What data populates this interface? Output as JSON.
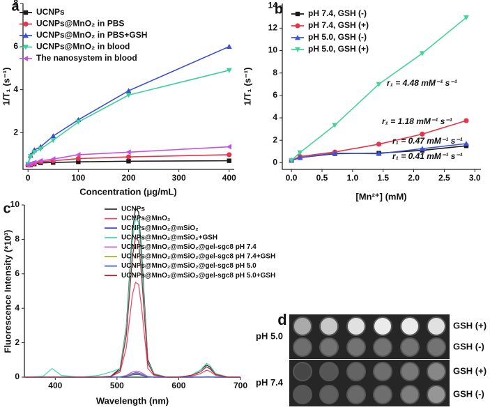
{
  "chart_data": [
    {
      "type": "line",
      "panel_label": "a",
      "x_label": "Concentration (μg/mL)",
      "y_label": "1/T₁ (s⁻¹)",
      "x": [
        0,
        5,
        12.5,
        25,
        50,
        100,
        200,
        400
      ],
      "xlim": [
        -10,
        410
      ],
      "xticks": [
        0,
        100,
        200,
        300,
        400
      ],
      "ylim": [
        0.3,
        8
      ],
      "yticks": [
        2,
        4,
        6,
        8
      ],
      "series": [
        {
          "name": "UCNPs",
          "color": "#1a1a1a",
          "marker": "square",
          "values": [
            0.5,
            0.5,
            0.55,
            0.6,
            0.62,
            0.65,
            0.68,
            0.7
          ]
        },
        {
          "name": "UCNPs@MnO₂ in PBS",
          "color": "#e8344a",
          "marker": "circle",
          "values": [
            0.5,
            0.52,
            0.58,
            0.65,
            0.7,
            0.8,
            0.88,
            0.98
          ]
        },
        {
          "name": "UCNPs@MnO₂ in PBS+GSH",
          "color": "#3a4fd8",
          "marker": "triangle-up",
          "values": [
            0.55,
            0.95,
            1.2,
            1.35,
            1.85,
            2.6,
            3.95,
            6.0
          ]
        },
        {
          "name": "UCNPs@MnO₂ in blood",
          "color": "#3fcf9e",
          "marker": "triangle-down",
          "values": [
            0.55,
            0.9,
            1.1,
            1.25,
            1.65,
            2.5,
            3.75,
            4.9
          ]
        },
        {
          "name": "The nanosystem in blood",
          "color": "#c454e0",
          "marker": "triangle-left",
          "values": [
            0.5,
            0.55,
            0.62,
            0.7,
            0.78,
            0.98,
            1.1,
            1.35
          ]
        }
      ]
    },
    {
      "type": "line",
      "panel_label": "b",
      "x_label": "[Mn²⁺] (mM)",
      "y_label": "1/T₁ (s⁻¹)",
      "x": [
        0,
        0.14,
        0.71,
        1.43,
        2.14,
        2.86
      ],
      "xlim": [
        -0.15,
        3.1
      ],
      "xticks": [
        {
          "value": 0,
          "label": "0.0"
        },
        0.5,
        {
          "value": 1,
          "label": "1.0"
        },
        1.5,
        {
          "value": 2,
          "label": "2.0"
        },
        2.5,
        {
          "value": 3,
          "label": "3.0"
        }
      ],
      "ylim": [
        -0.6,
        14.2
      ],
      "yticks": [
        0,
        2,
        4,
        6,
        8,
        10,
        12,
        14
      ],
      "series": [
        {
          "name": "pH 7.4, GSH (-)",
          "color": "#1a1a1a",
          "marker": "square",
          "values": [
            0.2,
            0.45,
            0.8,
            0.85,
            1.1,
            1.5
          ]
        },
        {
          "name": "pH 7.4, GSH (+)",
          "color": "#e8344a",
          "marker": "circle",
          "values": [
            0.2,
            0.55,
            0.95,
            1.65,
            2.55,
            3.75
          ]
        },
        {
          "name": "pH 5.0, GSH (-)",
          "color": "#3a56e0",
          "marker": "triangle-up",
          "values": [
            0.2,
            0.45,
            0.85,
            0.8,
            1.25,
            1.7
          ]
        },
        {
          "name": "pH 5.0, GSH (+)",
          "color": "#46d39a",
          "marker": "triangle-down",
          "values": [
            0.2,
            0.9,
            3.35,
            7.0,
            9.75,
            12.95
          ]
        }
      ],
      "annotations": [
        {
          "text": "r₁ = 4.48 mM⁻¹ s⁻¹",
          "color": "#46d39a"
        },
        {
          "text": "r₁ = 1.18 mM⁻¹ s⁻¹",
          "color": "#e8344a"
        },
        {
          "text": "r₁ = 0.47 mM⁻¹ s⁻¹",
          "color": "#3a56e0"
        },
        {
          "text": "r₁ = 0.41 mM⁻¹ s⁻¹",
          "color": "#1a1a1a"
        }
      ]
    },
    {
      "type": "line",
      "panel_label": "c",
      "x_label": "Wavelength (nm)",
      "y_label": "Fluorescence Intensity (*10³)",
      "x": [
        350,
        380,
        395,
        410,
        440,
        470,
        490,
        505,
        515,
        525,
        530,
        535,
        540,
        550,
        560,
        580,
        600,
        620,
        635,
        645,
        650,
        660,
        680,
        700
      ],
      "xlim": [
        350,
        700
      ],
      "xticks": [
        400,
        500,
        600,
        700
      ],
      "ylim": [
        0,
        10
      ],
      "yticks": [
        0,
        2,
        4,
        6,
        8,
        10
      ],
      "series": [
        {
          "name": "UCNPs",
          "color": "#333333",
          "values": [
            0,
            0,
            0,
            0,
            0,
            0,
            0.05,
            0.5,
            2.9,
            8.5,
            9.8,
            9.6,
            7.1,
            1,
            0.2,
            0,
            0,
            0.1,
            0.4,
            0.7,
            0.6,
            0.2,
            0,
            0
          ]
        },
        {
          "name": "UCNPs@MnO₂",
          "color": "#e8506a",
          "values": [
            0,
            0,
            0,
            0,
            0,
            0,
            0.03,
            0.3,
            1.7,
            4.8,
            5.5,
            5.4,
            4,
            0.5,
            0.1,
            0,
            0,
            0.05,
            0.2,
            0.4,
            0.35,
            0.1,
            0,
            0
          ]
        },
        {
          "name": "UCNPs@MnO₂@mSiO₂",
          "color": "#3b4ee0",
          "values": [
            0,
            0,
            0,
            0,
            0,
            0,
            0,
            0.01,
            0.07,
            0.21,
            0.25,
            0.24,
            0.18,
            0.03,
            0,
            0,
            0,
            0,
            0.01,
            0.02,
            0.02,
            0,
            0,
            0
          ]
        },
        {
          "name": "UCNPs@MnO₂@mSiO₂+GSH",
          "color": "#4fd8b4",
          "values": [
            0,
            0.05,
            0.5,
            0.1,
            0,
            0.1,
            0.3,
            0.5,
            2.8,
            8,
            9.2,
            9,
            6.6,
            0.9,
            0.2,
            0,
            0,
            0.1,
            0.4,
            0.8,
            0.7,
            0.2,
            0,
            0
          ]
        },
        {
          "name": "UCNPs@MnO₂@mSiO₂@gel-sgc8 pH 7.4",
          "color": "#d060d8",
          "values": [
            0,
            0,
            0,
            0,
            0,
            0,
            0,
            0.02,
            0.1,
            0.3,
            0.35,
            0.34,
            0.25,
            0.04,
            0,
            0,
            0,
            0,
            0.01,
            0.02,
            0.02,
            0,
            0,
            0
          ]
        },
        {
          "name": "UCNPs@MnO₂@mSiO₂@gel-sgc8 pH 7.4+GSH",
          "color": "#a8b030",
          "values": [
            0,
            0,
            0,
            0,
            0,
            0,
            0,
            0.01,
            0.06,
            0.17,
            0.2,
            0.19,
            0.14,
            0.02,
            0,
            0,
            0,
            0,
            0.01,
            0.01,
            0.01,
            0,
            0,
            0
          ]
        },
        {
          "name": "UCNPs@MnO₂@mSiO₂@gel-sgc8 pH 5.0",
          "color": "#3b5bd8",
          "values": [
            0,
            0,
            0,
            0,
            0,
            0,
            0,
            0.01,
            0.05,
            0.13,
            0.15,
            0.15,
            0.11,
            0.02,
            0,
            0,
            0,
            0,
            0,
            0.01,
            0.01,
            0,
            0,
            0
          ]
        },
        {
          "name": "UCNPs@MnO₂@mSiO₂@gel-sgc8 pH 5.0+GSH",
          "color": "#a03040",
          "values": [
            0,
            0,
            0,
            0,
            0,
            0,
            0.04,
            0.4,
            2.4,
            7,
            8.1,
            7.9,
            5.8,
            0.8,
            0.15,
            0,
            0,
            0.1,
            0.3,
            0.6,
            0.5,
            0.15,
            0,
            0
          ]
        }
      ]
    }
  ],
  "panel_d": {
    "panel_label": "d",
    "groups": [
      {
        "label": "pH 5.0",
        "rows": [
          "GSH (+)",
          "GSH (-)"
        ]
      },
      {
        "label": "pH 7.4",
        "rows": [
          "GSH (+)",
          "GSH (-)"
        ]
      }
    ]
  }
}
